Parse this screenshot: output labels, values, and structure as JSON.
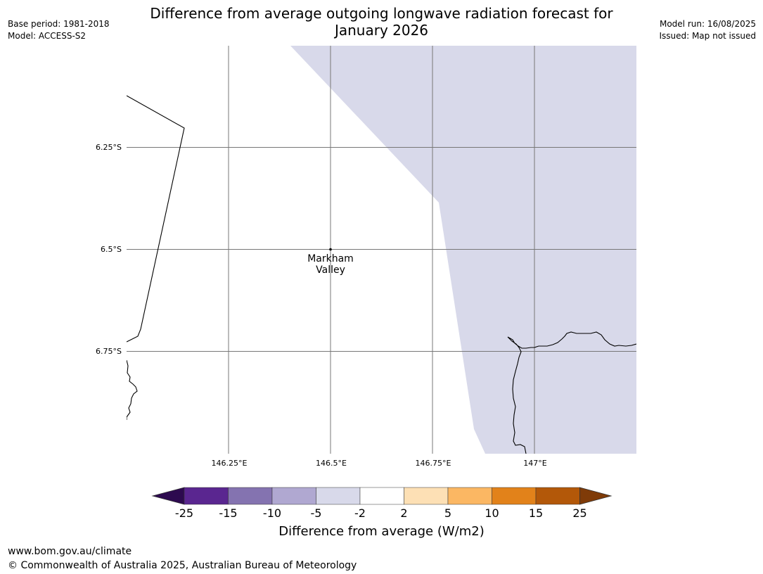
{
  "header": {
    "title_line1": "Difference from average outgoing longwave radiation forecast for",
    "title_line2": "January 2026",
    "base_period": "Base period: 1981-2018",
    "model": "Model: ACCESS-S2",
    "model_run": "Model run: 16/08/2025",
    "issued": "Issued: Map not issued"
  },
  "map": {
    "lat_labels": [
      "6.25°S",
      "6.5°S",
      "6.75°S"
    ],
    "lon_labels": [
      "146.25°E",
      "146.5°E",
      "146.75°E",
      "147°E"
    ],
    "place": {
      "name_line1": "Markham",
      "name_line2": "Valley"
    },
    "shaded_category": "-5 to -2",
    "shade_color": "#d8d9ea"
  },
  "colorbar": {
    "title": "Difference from average (W/m2)",
    "ticks": [
      "-25",
      "-15",
      "-10",
      "-5",
      "-2",
      "2",
      "5",
      "10",
      "15",
      "25"
    ],
    "colors": [
      "#5a2690",
      "#8473b0",
      "#b0a8d1",
      "#d8d9ea",
      "#ffffff",
      "#fde0b5",
      "#fbb763",
      "#e2821a",
      "#b35809"
    ],
    "under_color": "#2d0a4f",
    "over_color": "#7f3b08"
  },
  "footer": {
    "url": "www.bom.gov.au/climate",
    "copyright": "© Commonwealth of Australia 2025, Australian Bureau of Meteorology"
  }
}
